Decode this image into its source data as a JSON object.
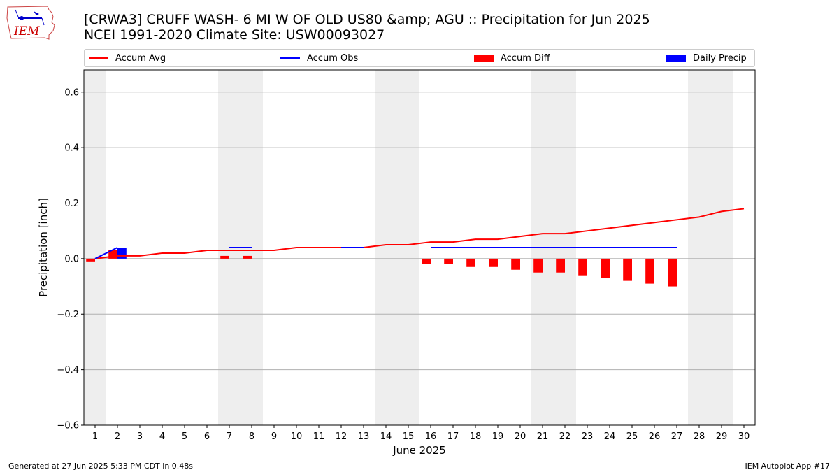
{
  "header": {
    "title_line1": "[CRWA3] CRUFF WASH- 6 MI W OF OLD US80 &amp; AGU :: Precipitation for Jun 2025",
    "title_line2": "NCEI 1991-2020 Climate Site: USW00093027"
  },
  "logo": {
    "text": "IEM",
    "icon": "iem-iowa-map-logo"
  },
  "footer": {
    "left": "Generated at 27 Jun 2025 5:33 PM CDT in 0.48s",
    "right": "IEM Autoplot App #17"
  },
  "legend": {
    "items": [
      {
        "label": "Accum Avg",
        "kind": "line",
        "color": "#ff0000"
      },
      {
        "label": "Accum Obs",
        "kind": "line",
        "color": "#0000ff"
      },
      {
        "label": "Accum Diff",
        "kind": "patch",
        "color": "#ff0000"
      },
      {
        "label": "Daily Precip",
        "kind": "patch",
        "color": "#0000ff"
      }
    ]
  },
  "chart_data": {
    "type": "bar",
    "xlabel": "June 2025",
    "ylabel": "Precipitation [inch]",
    "xlim": [
      0.5,
      30.5
    ],
    "ylim": [
      -0.6,
      0.68
    ],
    "yticks": [
      -0.6,
      -0.4,
      -0.2,
      0.0,
      0.2,
      0.4,
      0.6
    ],
    "ytick_labels": [
      "−0.6",
      "−0.4",
      "−0.2",
      "0.0",
      "0.2",
      "0.4",
      "0.6"
    ],
    "x": [
      1,
      2,
      3,
      4,
      5,
      6,
      7,
      8,
      9,
      10,
      11,
      12,
      13,
      14,
      15,
      16,
      17,
      18,
      19,
      20,
      21,
      22,
      23,
      24,
      25,
      26,
      27,
      28,
      29,
      30
    ],
    "xtick_labels": [
      "1",
      "2",
      "3",
      "4",
      "5",
      "6",
      "7",
      "8",
      "9",
      "10",
      "11",
      "12",
      "13",
      "14",
      "15",
      "16",
      "17",
      "18",
      "19",
      "20",
      "21",
      "22",
      "23",
      "24",
      "25",
      "26",
      "27",
      "28",
      "29",
      "30"
    ],
    "grid": "horizontal",
    "weekend_shading": [
      [
        0.5,
        1.5
      ],
      [
        6.5,
        8.5
      ],
      [
        13.5,
        15.5
      ],
      [
        20.5,
        22.5
      ],
      [
        27.5,
        29.5
      ]
    ],
    "shade_color": "#eeeeee",
    "series": [
      {
        "name": "Accum Avg",
        "kind": "line",
        "color": "#ff0000",
        "x": [
          1,
          2,
          3,
          4,
          5,
          6,
          7,
          8,
          9,
          10,
          11,
          12,
          13,
          14,
          15,
          16,
          17,
          18,
          19,
          20,
          21,
          22,
          23,
          24,
          25,
          26,
          27,
          28,
          29,
          30
        ],
        "values": [
          0.0,
          0.01,
          0.01,
          0.02,
          0.02,
          0.03,
          0.03,
          0.03,
          0.03,
          0.04,
          0.04,
          0.04,
          0.04,
          0.05,
          0.05,
          0.06,
          0.06,
          0.07,
          0.07,
          0.08,
          0.09,
          0.09,
          0.1,
          0.11,
          0.12,
          0.13,
          0.14,
          0.15,
          0.17,
          0.18
        ]
      },
      {
        "name": "Accum Obs",
        "kind": "line",
        "color": "#0000ff",
        "segments": [
          {
            "x": [
              1,
              2
            ],
            "values": [
              0.0,
              0.04
            ]
          },
          {
            "x": [
              7,
              8
            ],
            "values": [
              0.04,
              0.04
            ]
          },
          {
            "x": [
              12,
              13
            ],
            "values": [
              0.04,
              0.04
            ]
          },
          {
            "x": [
              16,
              17,
              18,
              19,
              20,
              21,
              22,
              23,
              24,
              25,
              26,
              27
            ],
            "values": [
              0.04,
              0.04,
              0.04,
              0.04,
              0.04,
              0.04,
              0.04,
              0.04,
              0.04,
              0.04,
              0.04,
              0.04
            ]
          }
        ]
      },
      {
        "name": "Accum Diff",
        "kind": "bar",
        "color": "#ff0000",
        "x": [
          1,
          2,
          7,
          8,
          16,
          17,
          18,
          19,
          20,
          21,
          22,
          23,
          24,
          25,
          26,
          27
        ],
        "values": [
          -0.01,
          0.03,
          0.01,
          0.01,
          -0.02,
          -0.02,
          -0.03,
          -0.03,
          -0.04,
          -0.05,
          -0.05,
          -0.06,
          -0.07,
          -0.08,
          -0.09,
          -0.1
        ]
      },
      {
        "name": "Daily Precip",
        "kind": "bar",
        "color": "#0000ff",
        "x": [
          2
        ],
        "values": [
          0.04
        ]
      }
    ]
  }
}
